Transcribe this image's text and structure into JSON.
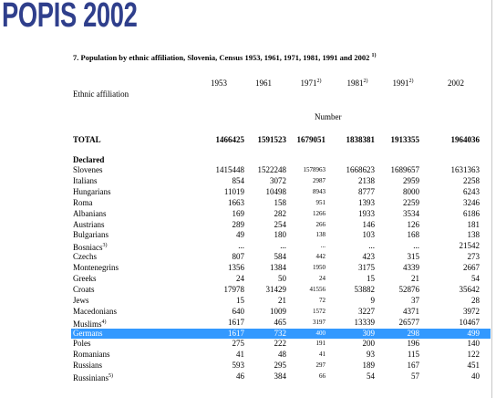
{
  "header": {
    "title": "POPIS 2002"
  },
  "table": {
    "caption": "7. Population by ethnic affiliation, Slovenia, Census 1953, 1961, 1971, 1981, 1991 and 2002",
    "caption_note": "1)",
    "row_header": "Ethnic affiliation",
    "unit": "Number",
    "columns": [
      {
        "label": "1953"
      },
      {
        "label": "1961"
      },
      {
        "label": "1971",
        "note": "2)"
      },
      {
        "label": "1981",
        "note": "2)"
      },
      {
        "label": "1991",
        "note": "2)"
      },
      {
        "label": "2002"
      }
    ],
    "total": {
      "label": "TOTAL",
      "values": [
        1466425,
        1591523,
        1679051,
        1838381,
        1913355,
        1964036
      ]
    },
    "group": "Declared",
    "rows": [
      {
        "label": "Slovenes",
        "values": [
          1415448,
          1522248,
          1578963,
          1668623,
          1689657,
          1631363
        ]
      },
      {
        "label": "Italians",
        "values": [
          854,
          3072,
          2987,
          2138,
          2959,
          2258
        ]
      },
      {
        "label": "Hungarians",
        "values": [
          11019,
          10498,
          8943,
          8777,
          8000,
          6243
        ]
      },
      {
        "label": "Roma",
        "values": [
          1663,
          158,
          951,
          1393,
          2259,
          3246
        ]
      },
      {
        "label": "Albanians",
        "values": [
          169,
          282,
          1266,
          1933,
          3534,
          6186
        ]
      },
      {
        "label": "Austrians",
        "values": [
          289,
          254,
          266,
          146,
          126,
          181
        ]
      },
      {
        "label": "Bulgarians",
        "values": [
          49,
          180,
          138,
          103,
          168,
          138
        ]
      },
      {
        "label": "Bosniacs",
        "note": "3)",
        "values": [
          "...",
          "...",
          "...",
          "...",
          "...",
          21542
        ]
      },
      {
        "label": "Czechs",
        "values": [
          807,
          584,
          442,
          423,
          315,
          273
        ]
      },
      {
        "label": "Montenegrins",
        "values": [
          1356,
          1384,
          1950,
          3175,
          4339,
          2667
        ]
      },
      {
        "label": "Greeks",
        "values": [
          24,
          50,
          24,
          15,
          21,
          54
        ]
      },
      {
        "label": "Croats",
        "values": [
          17978,
          31429,
          41556,
          53882,
          52876,
          35642
        ]
      },
      {
        "label": "Jews",
        "values": [
          15,
          21,
          72,
          9,
          37,
          28
        ]
      },
      {
        "label": "Macedonians",
        "values": [
          640,
          1009,
          1572,
          3227,
          4371,
          3972
        ]
      },
      {
        "label": "Muslims",
        "note": "4)",
        "values": [
          1617,
          465,
          3197,
          13339,
          26577,
          10467
        ]
      },
      {
        "label": "Germans",
        "highlighted": true,
        "values": [
          1617,
          732,
          400,
          309,
          298,
          499
        ]
      },
      {
        "label": "Poles",
        "values": [
          275,
          222,
          191,
          200,
          196,
          140
        ]
      },
      {
        "label": "Romanians",
        "values": [
          41,
          48,
          41,
          93,
          115,
          122
        ]
      },
      {
        "label": "Russians",
        "values": [
          593,
          295,
          297,
          189,
          167,
          451
        ]
      },
      {
        "label": "Russinians",
        "note": "5)",
        "values": [
          46,
          384,
          66,
          54,
          57,
          40
        ]
      }
    ]
  }
}
